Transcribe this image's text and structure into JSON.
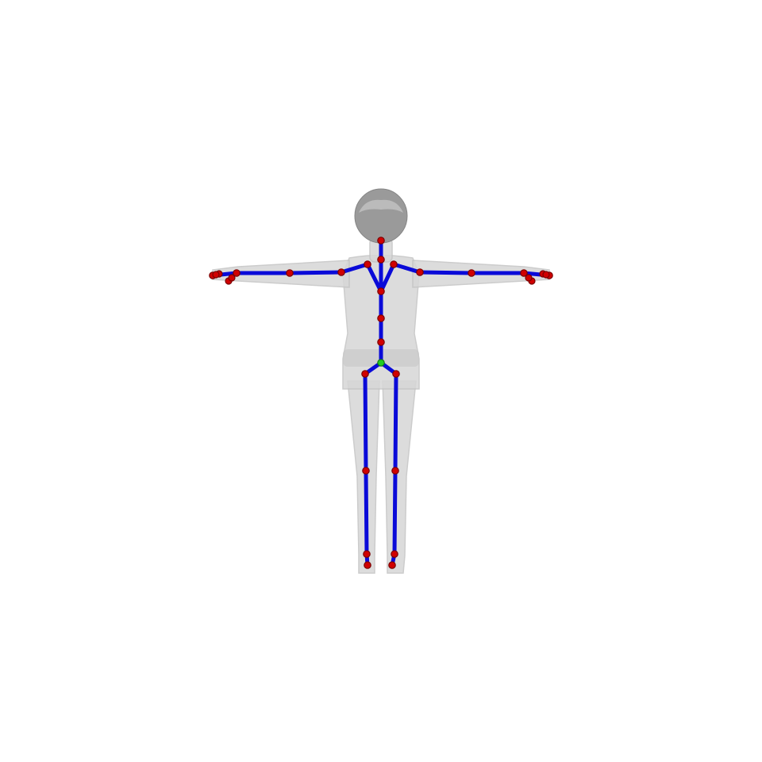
{
  "figure": {
    "background": "#ffffff",
    "mesh_color": "#d7d7d7",
    "hair_color": "#9a9a9a",
    "bone_color": "#0a0ad8",
    "joint_color": "#d10000",
    "root_color": "#22cc22"
  },
  "skeleton": {
    "root_joint": "hips",
    "joint_names": [
      "hips",
      "spine",
      "spine1",
      "spine2",
      "neck",
      "head",
      "left_shoulder",
      "left_arm",
      "left_forearm",
      "left_hand",
      "left_fingers",
      "right_shoulder",
      "right_arm",
      "right_forearm",
      "right_hand",
      "right_fingers",
      "left_upleg",
      "left_leg",
      "left_foot",
      "left_toe",
      "right_upleg",
      "right_leg",
      "right_foot",
      "right_toe"
    ],
    "bones": [
      [
        "hips",
        "spine"
      ],
      [
        "spine",
        "spine1"
      ],
      [
        "spine1",
        "spine2"
      ],
      [
        "spine2",
        "neck"
      ],
      [
        "neck",
        "head"
      ],
      [
        "spine2",
        "left_shoulder"
      ],
      [
        "left_shoulder",
        "left_arm"
      ],
      [
        "left_arm",
        "left_forearm"
      ],
      [
        "left_forearm",
        "left_hand"
      ],
      [
        "left_hand",
        "left_fingers"
      ],
      [
        "spine2",
        "right_shoulder"
      ],
      [
        "right_shoulder",
        "right_arm"
      ],
      [
        "right_arm",
        "right_forearm"
      ],
      [
        "right_forearm",
        "right_hand"
      ],
      [
        "right_hand",
        "right_fingers"
      ],
      [
        "hips",
        "left_upleg"
      ],
      [
        "left_upleg",
        "left_leg"
      ],
      [
        "left_leg",
        "left_foot"
      ],
      [
        "left_foot",
        "left_toe"
      ],
      [
        "hips",
        "right_upleg"
      ],
      [
        "right_upleg",
        "right_leg"
      ],
      [
        "right_leg",
        "right_foot"
      ],
      [
        "right_foot",
        "right_toe"
      ]
    ]
  }
}
